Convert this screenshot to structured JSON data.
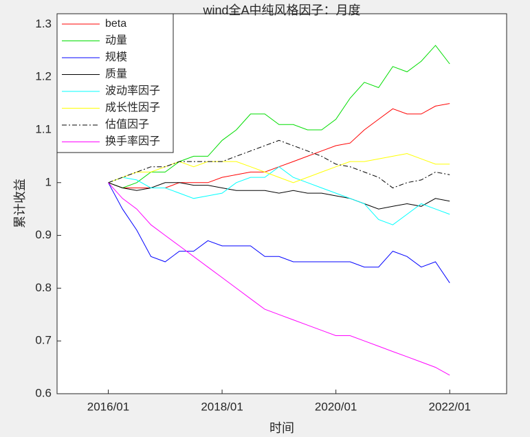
{
  "chart_data": {
    "type": "line",
    "title": "wind全A中纯风格因子：月度",
    "xlabel": "时间",
    "ylabel": "累计收益",
    "x": [
      2016,
      2016.25,
      2016.5,
      2016.75,
      2017,
      2017.25,
      2017.5,
      2017.75,
      2018,
      2018.25,
      2018.5,
      2018.75,
      2019,
      2019.25,
      2019.5,
      2019.75,
      2020,
      2020.25,
      2020.5,
      2020.75,
      2021,
      2021.25,
      2021.5,
      2021.75,
      2022
    ],
    "xlim": [
      2015.1,
      2023.0
    ],
    "xticks": [
      {
        "value": 2016,
        "label": "2016/01"
      },
      {
        "value": 2018,
        "label": "2018/01"
      },
      {
        "value": 2020,
        "label": "2020/01"
      },
      {
        "value": 2022,
        "label": "2022/01"
      }
    ],
    "ylim": [
      0.6,
      1.32
    ],
    "yticks": [
      0.6,
      0.7,
      0.8,
      0.9,
      1,
      1.1,
      1.2,
      1.3
    ],
    "grid": false,
    "legend": "northwest",
    "series": [
      {
        "name": "beta",
        "color": "#ff0000",
        "dash": "solid",
        "values": [
          1.0,
          0.99,
          0.99,
          0.99,
          0.99,
          1.0,
          1.0,
          1.0,
          1.01,
          1.015,
          1.02,
          1.02,
          1.03,
          1.04,
          1.05,
          1.06,
          1.07,
          1.075,
          1.1,
          1.12,
          1.14,
          1.13,
          1.13,
          1.145,
          1.15
        ]
      },
      {
        "name": "动量",
        "color": "#00dd00",
        "dash": "solid",
        "values": [
          1.0,
          0.99,
          1.0,
          1.02,
          1.02,
          1.04,
          1.05,
          1.05,
          1.08,
          1.1,
          1.13,
          1.13,
          1.11,
          1.11,
          1.1,
          1.1,
          1.12,
          1.16,
          1.19,
          1.18,
          1.22,
          1.21,
          1.23,
          1.26,
          1.225
        ]
      },
      {
        "name": "规模",
        "color": "#0000ff",
        "dash": "solid",
        "values": [
          1.0,
          0.95,
          0.91,
          0.86,
          0.85,
          0.87,
          0.87,
          0.89,
          0.88,
          0.88,
          0.88,
          0.86,
          0.86,
          0.85,
          0.85,
          0.85,
          0.85,
          0.85,
          0.84,
          0.84,
          0.87,
          0.86,
          0.84,
          0.85,
          0.81
        ]
      },
      {
        "name": "质量",
        "color": "#000000",
        "dash": "solid",
        "values": [
          1.0,
          0.99,
          0.985,
          0.99,
          1.0,
          1.0,
          0.995,
          0.995,
          0.99,
          0.985,
          0.985,
          0.985,
          0.98,
          0.985,
          0.98,
          0.98,
          0.975,
          0.97,
          0.96,
          0.95,
          0.955,
          0.96,
          0.955,
          0.97,
          0.965
        ]
      },
      {
        "name": "波动率因子",
        "color": "#00ffff",
        "dash": "solid",
        "values": [
          1.0,
          1.01,
          1.005,
          0.99,
          0.99,
          0.98,
          0.97,
          0.975,
          0.98,
          1.0,
          1.01,
          1.01,
          1.03,
          1.01,
          1.0,
          0.99,
          0.98,
          0.97,
          0.96,
          0.93,
          0.92,
          0.94,
          0.96,
          0.95,
          0.94
        ]
      },
      {
        "name": "成长性因子",
        "color": "#ffff00",
        "dash": "solid",
        "values": [
          1.0,
          1.01,
          1.02,
          1.02,
          1.03,
          1.04,
          1.03,
          1.04,
          1.04,
          1.04,
          1.03,
          1.02,
          1.01,
          1.0,
          1.01,
          1.02,
          1.03,
          1.04,
          1.04,
          1.045,
          1.05,
          1.055,
          1.045,
          1.035,
          1.035
        ]
      },
      {
        "name": "估值因子",
        "color": "#000000",
        "dash": "dashdot",
        "values": [
          1.0,
          1.01,
          1.02,
          1.03,
          1.03,
          1.04,
          1.04,
          1.04,
          1.04,
          1.05,
          1.06,
          1.07,
          1.08,
          1.07,
          1.06,
          1.05,
          1.035,
          1.03,
          1.02,
          1.01,
          0.99,
          1.0,
          1.005,
          1.02,
          1.015
        ]
      },
      {
        "name": "换手率因子",
        "color": "#ff00ff",
        "dash": "solid",
        "values": [
          1.0,
          0.97,
          0.95,
          0.92,
          0.9,
          0.88,
          0.86,
          0.84,
          0.82,
          0.8,
          0.78,
          0.76,
          0.75,
          0.74,
          0.73,
          0.72,
          0.71,
          0.71,
          0.7,
          0.69,
          0.68,
          0.67,
          0.66,
          0.65,
          0.635
        ]
      }
    ]
  }
}
